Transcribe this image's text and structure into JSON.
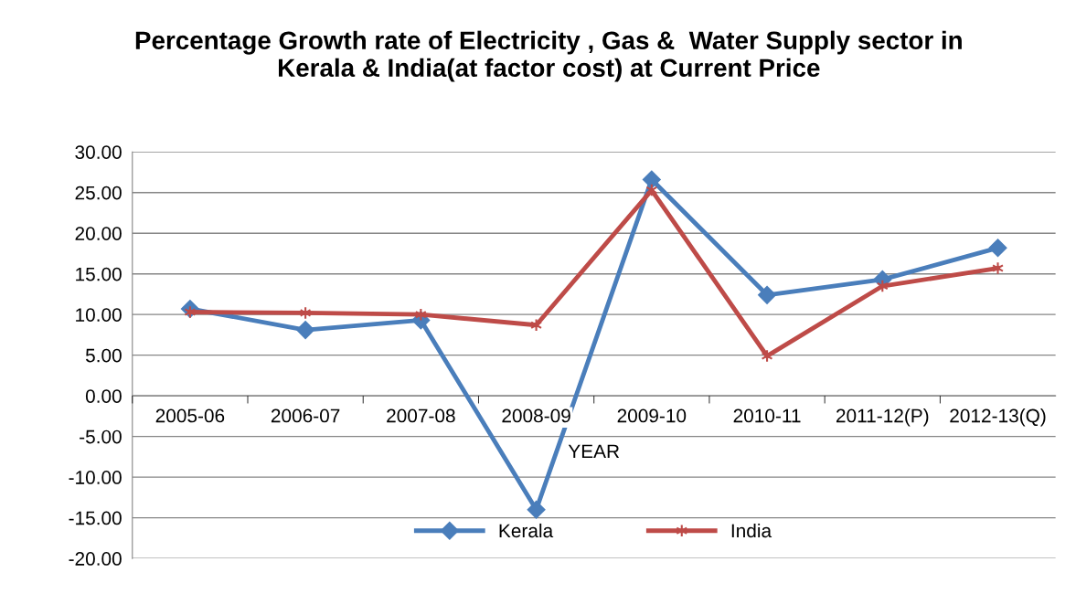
{
  "chart_data": {
    "type": "line",
    "title": "Percentage Growth rate of Electricity , Gas &  Water Supply sector in\nKerala & India(at factor cost) at Current Price",
    "xlabel": "YEAR",
    "categories": [
      "2005-06",
      "2006-07",
      "2007-08",
      "2008-09",
      "2009-10",
      "2010-11",
      "2011-12(P)",
      "2012-13(Q)"
    ],
    "series": [
      {
        "name": "Kerala",
        "color": "#4a7ebb",
        "marker": "diamond",
        "values": [
          10.7,
          8.1,
          9.3,
          -14.0,
          26.6,
          12.4,
          14.3,
          18.2
        ]
      },
      {
        "name": "India",
        "color": "#be4b48",
        "marker": "cross",
        "values": [
          10.3,
          10.2,
          10.0,
          8.7,
          25.3,
          4.9,
          13.5,
          15.7
        ]
      }
    ],
    "ylim": [
      -20,
      30
    ],
    "yticks": [
      {
        "value": -20,
        "label": "-20.00"
      },
      {
        "value": -15,
        "label": "-15.00"
      },
      {
        "value": -10,
        "label": "-10.00"
      },
      {
        "value": -5,
        "label": "-5.00"
      },
      {
        "value": 0,
        "label": "0.00"
      },
      {
        "value": 5,
        "label": "5.00"
      },
      {
        "value": 10,
        "label": "10.00"
      },
      {
        "value": 15,
        "label": "15.00"
      },
      {
        "value": 20,
        "label": "20.00"
      },
      {
        "value": 25,
        "label": "25.00"
      },
      {
        "value": 30,
        "label": "30.00"
      }
    ],
    "grid": "y",
    "legend": "bottom",
    "line_style": "solid"
  }
}
